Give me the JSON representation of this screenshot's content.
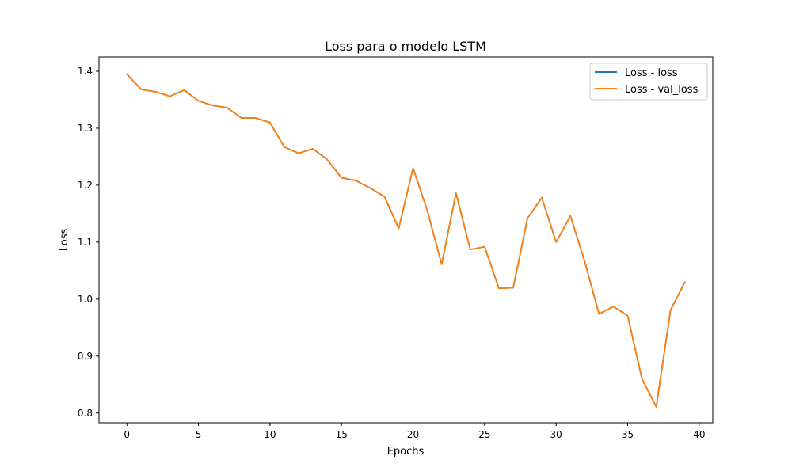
{
  "chart_data": {
    "type": "line",
    "title": "Loss para o modelo LSTM",
    "xlabel": "Epochs",
    "ylabel": "Loss",
    "xlim": [
      -1.95,
      40.95
    ],
    "ylim": [
      0.783,
      1.425
    ],
    "xticks": [
      0,
      5,
      10,
      15,
      20,
      25,
      30,
      35,
      40
    ],
    "yticks": [
      0.8,
      0.9,
      1.0,
      1.1,
      1.2,
      1.3,
      1.4
    ],
    "xtick_labels": [
      "0",
      "5",
      "10",
      "15",
      "20",
      "25",
      "30",
      "35",
      "40"
    ],
    "ytick_labels": [
      "0.8",
      "0.9",
      "1.0",
      "1.1",
      "1.2",
      "1.3",
      "1.4"
    ],
    "grid": false,
    "legend_position": "top-right",
    "x": [
      0,
      1,
      2,
      3,
      4,
      5,
      6,
      7,
      8,
      9,
      10,
      11,
      12,
      13,
      14,
      15,
      16,
      17,
      18,
      19,
      20,
      21,
      22,
      23,
      24,
      25,
      26,
      27,
      28,
      29,
      30,
      31,
      32,
      33,
      34,
      35,
      36,
      37,
      38,
      39
    ],
    "series": [
      {
        "name": "Loss - loss",
        "color": "#1f77b4",
        "values": [
          1.395,
          1.368,
          1.364,
          1.356,
          1.367,
          1.348,
          1.34,
          1.336,
          1.318,
          1.318,
          1.31,
          1.267,
          1.256,
          1.264,
          1.245,
          1.213,
          1.208,
          1.195,
          1.18,
          1.124,
          1.23,
          1.155,
          1.061,
          1.186,
          1.087,
          1.092,
          1.019,
          1.02,
          1.142,
          1.178,
          1.1,
          1.146,
          1.066,
          0.974,
          0.987,
          0.971,
          0.86,
          0.811,
          0.981,
          1.03
        ]
      },
      {
        "name": "Loss - val_loss",
        "color": "#ff7f0e",
        "values": [
          1.395,
          1.368,
          1.364,
          1.356,
          1.367,
          1.348,
          1.34,
          1.336,
          1.318,
          1.318,
          1.31,
          1.267,
          1.256,
          1.264,
          1.245,
          1.213,
          1.208,
          1.195,
          1.18,
          1.124,
          1.23,
          1.155,
          1.061,
          1.186,
          1.087,
          1.092,
          1.019,
          1.02,
          1.142,
          1.178,
          1.1,
          1.146,
          1.066,
          0.974,
          0.987,
          0.971,
          0.86,
          0.811,
          0.981,
          1.03
        ]
      }
    ]
  }
}
